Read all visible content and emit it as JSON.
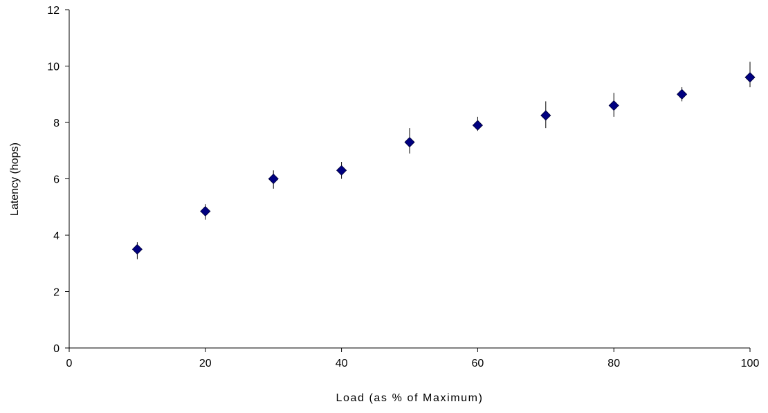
{
  "chart_data": {
    "type": "scatter",
    "title": "",
    "xlabel": "Load (as % of Maximum)",
    "ylabel": "Latency (hops)",
    "xlim": [
      0,
      100
    ],
    "ylim": [
      0,
      12
    ],
    "xticks": [
      0,
      20,
      40,
      60,
      80,
      100
    ],
    "yticks": [
      0,
      2,
      4,
      6,
      8,
      10,
      12
    ],
    "grid": false,
    "legend": "none",
    "marker": "diamond",
    "marker_color": "#000080",
    "series": [
      {
        "x": [
          10,
          20,
          30,
          40,
          50,
          60,
          70,
          80,
          90,
          100
        ],
        "y": [
          3.5,
          4.85,
          6.0,
          6.3,
          7.3,
          7.9,
          8.25,
          8.6,
          9.0,
          9.6
        ],
        "y_err_low": [
          3.15,
          4.55,
          5.65,
          6.0,
          6.9,
          7.7,
          7.8,
          8.2,
          8.75,
          9.25
        ],
        "y_err_high": [
          3.75,
          5.1,
          6.3,
          6.6,
          7.8,
          8.2,
          8.75,
          9.05,
          9.25,
          10.15
        ]
      }
    ]
  }
}
